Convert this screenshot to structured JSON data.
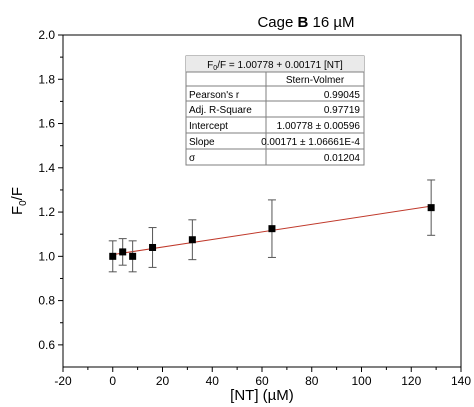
{
  "chart_data": {
    "type": "scatter",
    "title_prefix": "Cage ",
    "title_bold": "B",
    "title_suffix": " 16 µM",
    "xlabel": "[NT] (µM)",
    "ylabel": "F",
    "ylabel_sub": "0",
    "ylabel_tail": "/F",
    "xlim": [
      -20,
      140
    ],
    "ylim": [
      0.5,
      2.0
    ],
    "x_ticks": [
      -20,
      0,
      20,
      40,
      60,
      80,
      100,
      120,
      140
    ],
    "y_ticks": [
      0.6,
      0.8,
      1.0,
      1.2,
      1.4,
      1.6,
      1.8,
      2.0
    ],
    "x_tick_labels": [
      "-20",
      "0",
      "20",
      "40",
      "60",
      "80",
      "100",
      "120",
      "140"
    ],
    "y_tick_labels": [
      "0.6",
      "0.8",
      "1.0",
      "1.2",
      "1.4",
      "1.6",
      "1.8",
      "2.0"
    ],
    "grid": false,
    "series": [
      {
        "marker": "square",
        "color": "#000000",
        "x": [
          0,
          4,
          8,
          16,
          32,
          64,
          128
        ],
        "y": [
          1.0,
          1.02,
          1.0,
          1.04,
          1.075,
          1.125,
          1.22
        ],
        "error": [
          0.07,
          0.06,
          0.07,
          0.09,
          0.09,
          0.13,
          0.125
        ]
      }
    ],
    "fit_line": {
      "color": "#c0392b",
      "intercept": 1.00778,
      "slope": 0.00171,
      "x_range": [
        0,
        128
      ]
    },
    "stats_table": {
      "equation_prefix": "F",
      "equation_sub": "0",
      "equation_suffix": "/F = 1.00778 + 0.00171 [NT]",
      "column_header": "Stern-Volmer",
      "rows": [
        {
          "label": "Pearson's r",
          "value": "0.99045"
        },
        {
          "label": "Adj. R-Square",
          "value": "0.97719"
        },
        {
          "label": "Intercept",
          "value": "1.00778 ± 0.00596"
        },
        {
          "label": "Slope",
          "value": "0.00171 ± 1.06661E-4"
        },
        {
          "label": "σ",
          "value": "0.01204"
        }
      ]
    }
  }
}
